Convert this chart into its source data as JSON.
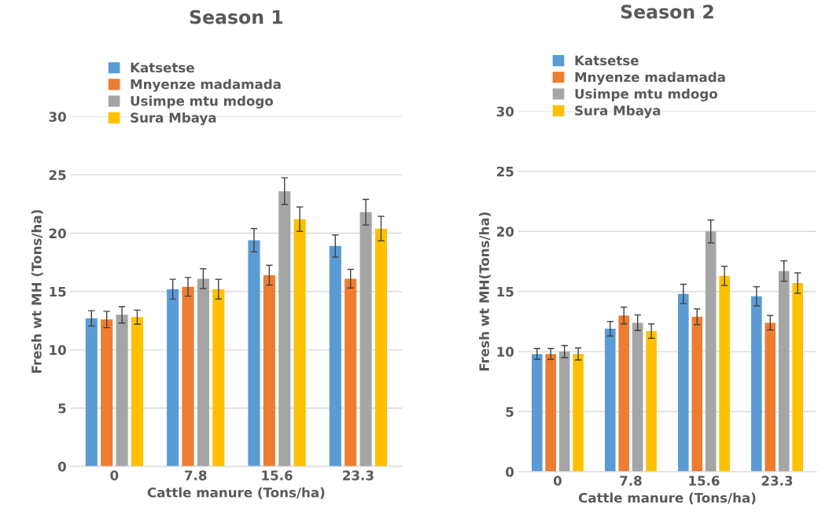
{
  "chart_data": [
    {
      "type": "bar",
      "title": "Season 1",
      "xlabel": "Cattle manure (Tons/ha)",
      "ylabel": "Fresh wt MH (Tons/ha)",
      "categories": [
        "0",
        "7.8",
        "15.6",
        "23.3"
      ],
      "ylim": [
        0,
        30
      ],
      "yticks": [
        0,
        5,
        10,
        15,
        20,
        25,
        30
      ],
      "grid": "y",
      "legend": "top left",
      "series": [
        {
          "name": "Katsetse",
          "color": "#5b9bd5",
          "values": [
            12.7,
            15.2,
            19.4,
            18.9
          ],
          "errors": [
            0.65,
            0.85,
            1.0,
            0.95
          ]
        },
        {
          "name": "Mnyenze madamada",
          "color": "#ed7d31",
          "values": [
            12.6,
            15.4,
            16.4,
            16.1
          ],
          "errors": [
            0.7,
            0.8,
            0.85,
            0.8
          ]
        },
        {
          "name": "Usimpe mtu mdogo",
          "color": "#a5a5a5",
          "values": [
            13.0,
            16.1,
            23.6,
            21.8
          ],
          "errors": [
            0.7,
            0.85,
            1.15,
            1.1
          ]
        },
        {
          "name": "Sura Mbaya",
          "color": "#ffc000",
          "values": [
            12.8,
            15.2,
            21.2,
            20.4
          ],
          "errors": [
            0.6,
            0.85,
            1.05,
            1.05
          ]
        }
      ]
    },
    {
      "type": "bar",
      "title": "Season 2",
      "xlabel": "Cattle manure (Tons/ha)",
      "ylabel": "Fresh wt MH(Tons/ha)",
      "categories": [
        "0",
        "7.8",
        "15.6",
        "23.3"
      ],
      "ylim": [
        0,
        30
      ],
      "yticks": [
        0,
        5,
        10,
        15,
        20,
        25,
        30
      ],
      "grid": "y",
      "legend": "top left",
      "series": [
        {
          "name": "Katsetse",
          "color": "#5b9bd5",
          "values": [
            9.8,
            11.9,
            14.8,
            14.6
          ],
          "errors": [
            0.45,
            0.6,
            0.8,
            0.8
          ]
        },
        {
          "name": "Mnyenze madamada",
          "color": "#ed7d31",
          "values": [
            9.8,
            13.0,
            12.9,
            12.4
          ],
          "errors": [
            0.45,
            0.7,
            0.65,
            0.6
          ]
        },
        {
          "name": "Usimpe mtu mdogo",
          "color": "#a5a5a5",
          "values": [
            10.0,
            12.4,
            20.0,
            16.7
          ],
          "errors": [
            0.5,
            0.65,
            0.95,
            0.85
          ]
        },
        {
          "name": "Sura Mbaya",
          "color": "#ffc000",
          "values": [
            9.8,
            11.7,
            16.3,
            15.7
          ],
          "errors": [
            0.5,
            0.6,
            0.8,
            0.85
          ]
        }
      ]
    }
  ]
}
